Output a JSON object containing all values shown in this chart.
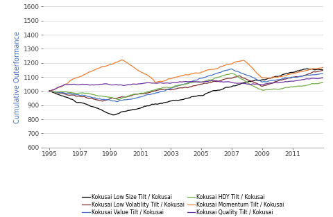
{
  "title": "",
  "ylabel": "Cumulative Outerformance",
  "ylim": [
    600,
    1600
  ],
  "yticks": [
    600,
    700,
    800,
    900,
    1000,
    1100,
    1200,
    1300,
    1400,
    1500,
    1600
  ],
  "xticks": [
    1995,
    1997,
    1999,
    2001,
    2003,
    2005,
    2007,
    2009,
    2011
  ],
  "xlim": [
    1994.6,
    2013.0
  ],
  "series_colors": {
    "low_size": "#000000",
    "low_vol": "#7B2C2C",
    "value": "#4472C4",
    "hdy": "#70AD47",
    "momentum": "#ED7D31",
    "quality": "#7030A0"
  },
  "legend_labels": {
    "low_size": "Kokusai Low Size Tilt / Kokusai",
    "low_vol": "Kokusai Low Volatility Tilt / Kokusai",
    "value": "Kokusai Value Tilt / Kokusai",
    "hdy": "Kokusai HDY Tilt / Kokusai",
    "momentum": "Kokusai Momentum Tilt / Kokusai",
    "quality": "Kokusai Quality Tilt / Kokusai"
  }
}
